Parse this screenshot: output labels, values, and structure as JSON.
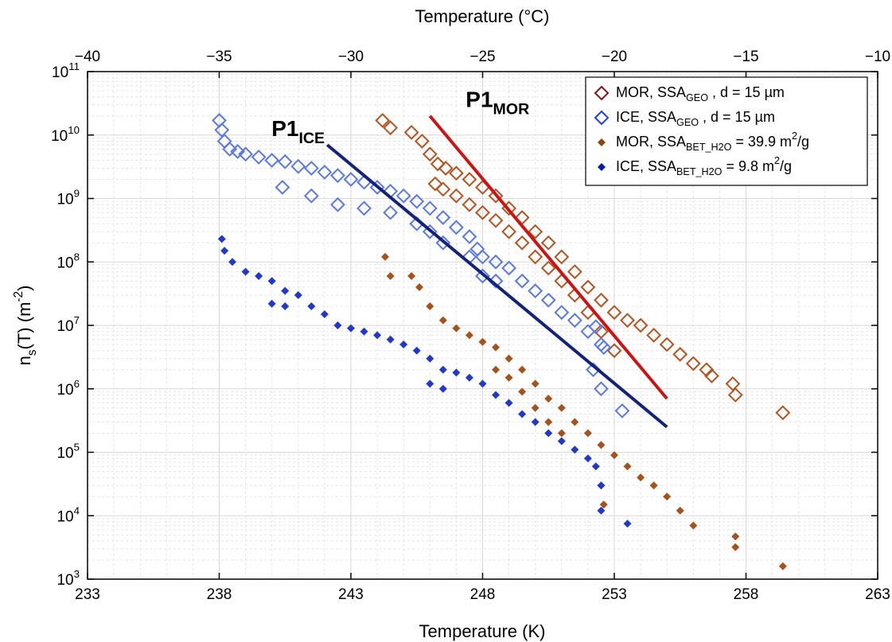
{
  "chart_data": {
    "type": "scatter",
    "xlabel": "Temperature (K)",
    "x2label": "Temperature (°C)",
    "ylabel": "n_{s}(T) (m^{-2})",
    "xlim": [
      233,
      263
    ],
    "xticks": [
      233,
      238,
      243,
      248,
      253,
      258,
      263
    ],
    "x2lim": [
      -40,
      -10
    ],
    "x2ticks": [
      {
        "value": -40,
        "label": "−40"
      },
      {
        "value": -35,
        "label": "−35"
      },
      {
        "value": -30,
        "label": "−30"
      },
      {
        "value": -25,
        "label": "−25"
      },
      {
        "value": -20,
        "label": "−20"
      },
      {
        "value": -15,
        "label": "−15"
      },
      {
        "value": -10,
        "label": "−10"
      }
    ],
    "ylim": [
      1000,
      100000000000
    ],
    "yticks": [
      {
        "value": 1000,
        "label": "10^{3}"
      },
      {
        "value": 10000,
        "label": "10^{4}"
      },
      {
        "value": 100000,
        "label": "10^{5}"
      },
      {
        "value": 1000000,
        "label": "10^{6}"
      },
      {
        "value": 10000000,
        "label": "10^{7}"
      },
      {
        "value": 100000000,
        "label": "10^{8}"
      },
      {
        "value": 1000000000,
        "label": "10^{9}"
      },
      {
        "value": 10000000000,
        "label": "10^{10}"
      },
      {
        "value": 100000000000,
        "label": "10^{11}"
      }
    ],
    "log_y": true,
    "grid": true,
    "legend": "top-right",
    "series": [
      {
        "name": "MOR, SSA_{GEO} , d = 15 µm",
        "color": "#b5541f",
        "legend_color": "#8b1414",
        "marker": "diamond-open",
        "x": [
          244.2,
          244.5,
          245.3,
          245.7,
          246.0,
          246.3,
          246.6,
          247.0,
          247.5,
          248.0,
          248.5,
          249.0,
          249.5,
          250.0,
          250.5,
          251.0,
          251.5,
          252.0,
          252.5,
          253.0,
          253.5,
          254.0,
          254.5,
          255.0,
          255.5,
          256.0,
          256.5,
          256.7,
          257.5,
          257.6,
          259.4,
          246.2,
          246.5,
          247.0,
          247.5,
          248.0,
          248.5,
          249.0,
          249.5,
          250.0,
          250.5,
          251.0,
          251.5,
          252.0,
          252.5,
          253.0
        ],
        "values": [
          17000000000,
          13000000000,
          11000000000,
          8000000000,
          5000000000,
          3500000000,
          3000000000,
          2500000000,
          2000000000,
          1500000000,
          1100000000,
          700000000,
          500000000,
          300000000,
          200000000,
          120000000,
          70000000,
          40000000,
          25000000,
          16000000,
          12000000,
          10000000,
          7000000,
          5000000,
          3500000,
          2500000,
          2000000,
          1600000,
          1200000,
          800000,
          420000,
          1700000000,
          1400000000,
          1100000000,
          800000000,
          600000000,
          450000000,
          300000000,
          200000000,
          120000000,
          80000000,
          50000000,
          30000000,
          16000000,
          8000000,
          4000000
        ]
      },
      {
        "name": "ICE, SSA_{GEO} , d = 15 µm",
        "color": "#5a78e6",
        "legend_color": "#1f3fe0",
        "marker": "diamond-open",
        "x": [
          238.0,
          238.1,
          238.2,
          238.4,
          238.7,
          239.0,
          239.5,
          240.0,
          240.5,
          241.0,
          241.5,
          242.0,
          242.5,
          243.0,
          243.5,
          244.0,
          244.5,
          245.0,
          245.5,
          246.0,
          246.5,
          247.0,
          247.5,
          247.8,
          248.0,
          248.5,
          249.0,
          249.5,
          250.0,
          250.5,
          251.0,
          251.5,
          252.0,
          252.3,
          252.5,
          252.2,
          252.5,
          252.6,
          253.3,
          240.4,
          241.5,
          242.5,
          243.5,
          244.5,
          245.5,
          246.0,
          246.5,
          247.5,
          248.0,
          248.5
        ],
        "values": [
          17000000000,
          12000000000,
          8000000000,
          6000000000,
          5500000000,
          5000000000,
          4500000000,
          4000000000,
          3800000000,
          3200000000,
          3000000000,
          2600000000,
          2300000000,
          2000000000,
          1800000000,
          1500000000,
          1300000000,
          1100000000,
          900000000,
          700000000,
          500000000,
          350000000,
          250000000,
          160000000,
          120000000,
          100000000,
          80000000,
          50000000,
          35000000,
          25000000,
          16000000,
          12000000,
          8000000,
          9500000,
          5000000,
          2000000,
          1000000,
          4500000,
          450000,
          1500000000,
          1100000000,
          800000000,
          700000000,
          600000000,
          400000000,
          300000000,
          200000000,
          120000000,
          60000000,
          50000000
        ]
      },
      {
        "name": "MOR, SSA_{BET_H2O} = 39.9 m^{2}/g",
        "color": "#a5531c",
        "legend_color": "#8b4513",
        "marker": "diamond-filled",
        "x": [
          244.3,
          244.5,
          245.3,
          245.6,
          246.0,
          246.5,
          247.0,
          247.5,
          248.0,
          248.5,
          249.0,
          249.5,
          250.0,
          250.5,
          251.0,
          251.5,
          252.0,
          252.5,
          253.0,
          253.5,
          254.0,
          254.5,
          255.0,
          255.5,
          256.0,
          257.6,
          257.6,
          259.4,
          248.5,
          249.0,
          249.5,
          250.0,
          250.5,
          251.0,
          252.5,
          252.6
        ],
        "values": [
          120000000,
          60000000,
          60000000,
          40000000,
          20000000,
          12000000,
          9000000,
          7000000,
          5500000,
          4500000,
          3000000,
          2000000,
          1200000,
          700000,
          500000,
          300000,
          200000,
          130000,
          90000,
          60000,
          40000,
          30000,
          20000,
          12000,
          7000,
          4700,
          3200,
          1600,
          2000000,
          1500000,
          900000,
          500000,
          300000,
          200000,
          30000,
          15000
        ]
      },
      {
        "name": "ICE, SSA_{BET_H2O} = 9.8 m^{2}/g",
        "color": "#2238c8",
        "legend_color": "#0a1ea0",
        "marker": "diamond-filled",
        "x": [
          238.1,
          238.2,
          238.5,
          239.0,
          239.5,
          240.0,
          240.5,
          241.0,
          241.5,
          242.0,
          242.5,
          243.0,
          243.5,
          244.0,
          244.5,
          245.0,
          245.5,
          246.0,
          246.5,
          247.0,
          247.5,
          248.0,
          248.5,
          249.0,
          249.5,
          250.0,
          250.5,
          251.0,
          251.5,
          252.0,
          252.3,
          252.5,
          252.5,
          253.5,
          240.0,
          240.5,
          246.0,
          246.5
        ],
        "values": [
          230000000,
          150000000,
          100000000,
          70000000,
          60000000,
          50000000,
          35000000,
          30000000,
          20000000,
          15000000,
          10000000,
          9000000,
          8000000,
          7000000,
          6000000,
          5000000,
          4000000,
          3000000,
          2000000,
          1800000,
          1500000,
          1200000,
          800000,
          600000,
          400000,
          300000,
          200000,
          150000,
          110000,
          80000,
          60000,
          30000,
          12000,
          7500,
          22000000,
          20000000,
          1200000,
          1000000
        ]
      }
    ],
    "lines": [
      {
        "name": "P1_{ICE}",
        "color": "#14237a",
        "x": [
          242.1,
          255.0
        ],
        "values": [
          7000000000,
          250000
        ]
      },
      {
        "name": "P1_{MOR}",
        "color": "#cc1414",
        "x": [
          246.0,
          255.0
        ],
        "values": [
          20000000000,
          700000
        ]
      }
    ]
  }
}
